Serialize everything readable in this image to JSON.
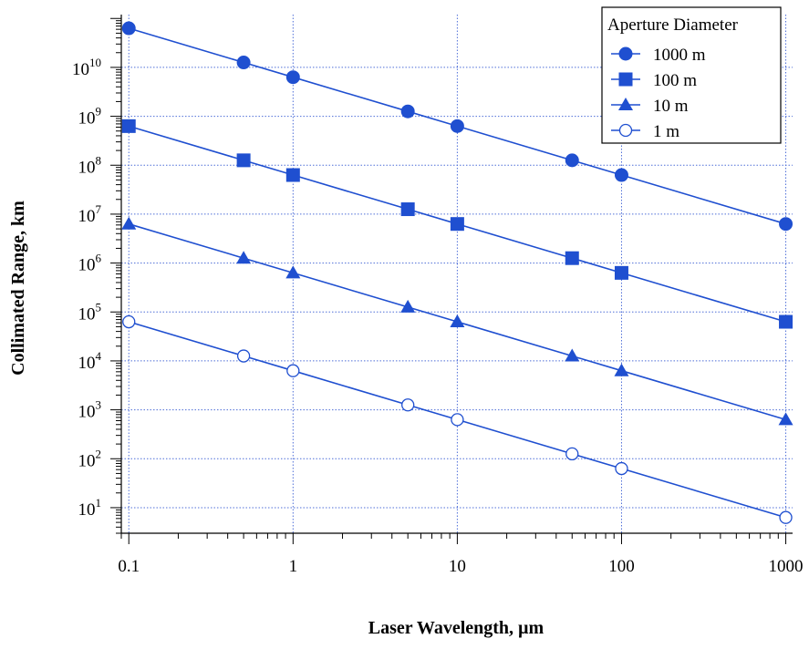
{
  "colors": {
    "series": "#1f4fd0",
    "grid": "#4f6fd8",
    "axis": "#000000"
  },
  "chart_data": {
    "type": "line",
    "xlabel": "Laser Wavelength, µm",
    "ylabel": "Collimated Range, km",
    "x_scale": "log",
    "y_scale": "log",
    "xlim": [
      0.09,
      1100
    ],
    "ylim": [
      3,
      120000000000
    ],
    "grid": true,
    "legend": {
      "title": "Aperture Diameter",
      "placement": "top-right"
    },
    "x": [
      0.1,
      0.5,
      1,
      5,
      10,
      50,
      100,
      1000
    ],
    "x_tick_labels": [
      "0.1",
      "1",
      "10",
      "100",
      "1000"
    ],
    "y_tick_labels": [
      {
        "base": "10",
        "exp": "1"
      },
      {
        "base": "10",
        "exp": "2"
      },
      {
        "base": "10",
        "exp": "3"
      },
      {
        "base": "10",
        "exp": "4"
      },
      {
        "base": "10",
        "exp": "5"
      },
      {
        "base": "10",
        "exp": "6"
      },
      {
        "base": "10",
        "exp": "7"
      },
      {
        "base": "10",
        "exp": "8"
      },
      {
        "base": "10",
        "exp": "9"
      },
      {
        "base": "10",
        "exp": "10"
      }
    ],
    "series": [
      {
        "name": "1000 m",
        "marker": "circle-filled",
        "values": [
          63000000000,
          12600000000,
          6300000000,
          1260000000,
          630000000,
          126000000,
          63000000,
          6300000
        ]
      },
      {
        "name": "100 m",
        "marker": "square-filled",
        "values": [
          630000000,
          126000000,
          63000000,
          12600000,
          6300000,
          1260000,
          630000,
          63000
        ]
      },
      {
        "name": "10 m",
        "marker": "triangle-filled",
        "values": [
          6300000,
          1260000,
          630000,
          126000,
          63000,
          12600,
          6300,
          630
        ]
      },
      {
        "name": "1 m",
        "marker": "circle-open",
        "values": [
          63000,
          12600,
          6300,
          1260,
          630,
          126,
          63,
          6.3
        ]
      }
    ]
  }
}
